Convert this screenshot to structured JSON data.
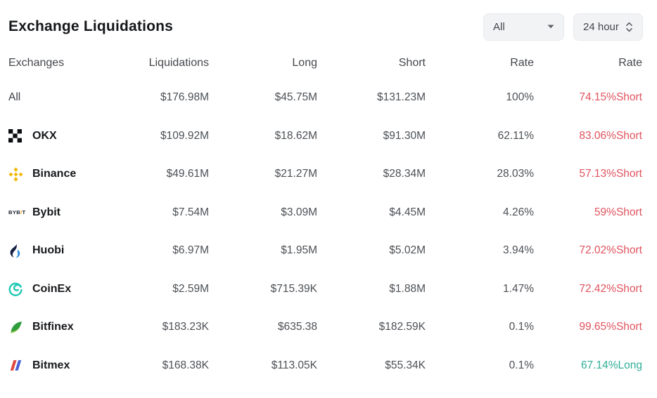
{
  "title": "Exchange Liquidations",
  "filters": {
    "coin": {
      "value": "All",
      "icon": "caret-down-icon"
    },
    "time": {
      "value": "24 hour",
      "icon": "unfold-icon"
    }
  },
  "table": {
    "headers": [
      "Exchanges",
      "Liquidations",
      "Long",
      "Short",
      "Rate",
      "Rate"
    ],
    "rows": [
      {
        "exchange": "All",
        "icon": "none",
        "liquidations": "$176.98M",
        "long": "$45.75M",
        "short": "$131.23M",
        "rate": "100%",
        "rate2": "74.15%Short",
        "rate2_dir": "short"
      },
      {
        "exchange": "OKX",
        "icon": "okx-icon",
        "liquidations": "$109.92M",
        "long": "$18.62M",
        "short": "$91.30M",
        "rate": "62.11%",
        "rate2": "83.06%Short",
        "rate2_dir": "short"
      },
      {
        "exchange": "Binance",
        "icon": "binance-icon",
        "liquidations": "$49.61M",
        "long": "$21.27M",
        "short": "$28.34M",
        "rate": "28.03%",
        "rate2": "57.13%Short",
        "rate2_dir": "short"
      },
      {
        "exchange": "Bybit",
        "icon": "bybit-icon",
        "liquidations": "$7.54M",
        "long": "$3.09M",
        "short": "$4.45M",
        "rate": "4.26%",
        "rate2": "59%Short",
        "rate2_dir": "short"
      },
      {
        "exchange": "Huobi",
        "icon": "huobi-icon",
        "liquidations": "$6.97M",
        "long": "$1.95M",
        "short": "$5.02M",
        "rate": "3.94%",
        "rate2": "72.02%Short",
        "rate2_dir": "short"
      },
      {
        "exchange": "CoinEx",
        "icon": "coinex-icon",
        "liquidations": "$2.59M",
        "long": "$715.39K",
        "short": "$1.88M",
        "rate": "1.47%",
        "rate2": "72.42%Short",
        "rate2_dir": "short"
      },
      {
        "exchange": "Bitfinex",
        "icon": "bitfinex-icon",
        "liquidations": "$183.23K",
        "long": "$635.38",
        "short": "$182.59K",
        "rate": "0.1%",
        "rate2": "99.65%Short",
        "rate2_dir": "short"
      },
      {
        "exchange": "Bitmex",
        "icon": "bitmex-icon",
        "liquidations": "$168.38K",
        "long": "$113.05K",
        "short": "$55.34K",
        "rate": "0.1%",
        "rate2": "67.14%Long",
        "rate2_dir": "long"
      }
    ]
  },
  "colors": {
    "short": "#E0535E",
    "long": "#2FAD96",
    "binance_yellow": "#F0B90B",
    "bybit_yellow": "#F7A600",
    "huobi_navy": "#152241",
    "huobi_blue": "#2E8DE0",
    "coinex_teal": "#1FC7B5",
    "bitfinex_green_dark": "#2E9E3F",
    "bitfinex_green_light": "#8BC540",
    "bitmex_red": "#E0473D",
    "bitmex_blue": "#4A5FD6",
    "okx_black": "#0B0E11"
  }
}
